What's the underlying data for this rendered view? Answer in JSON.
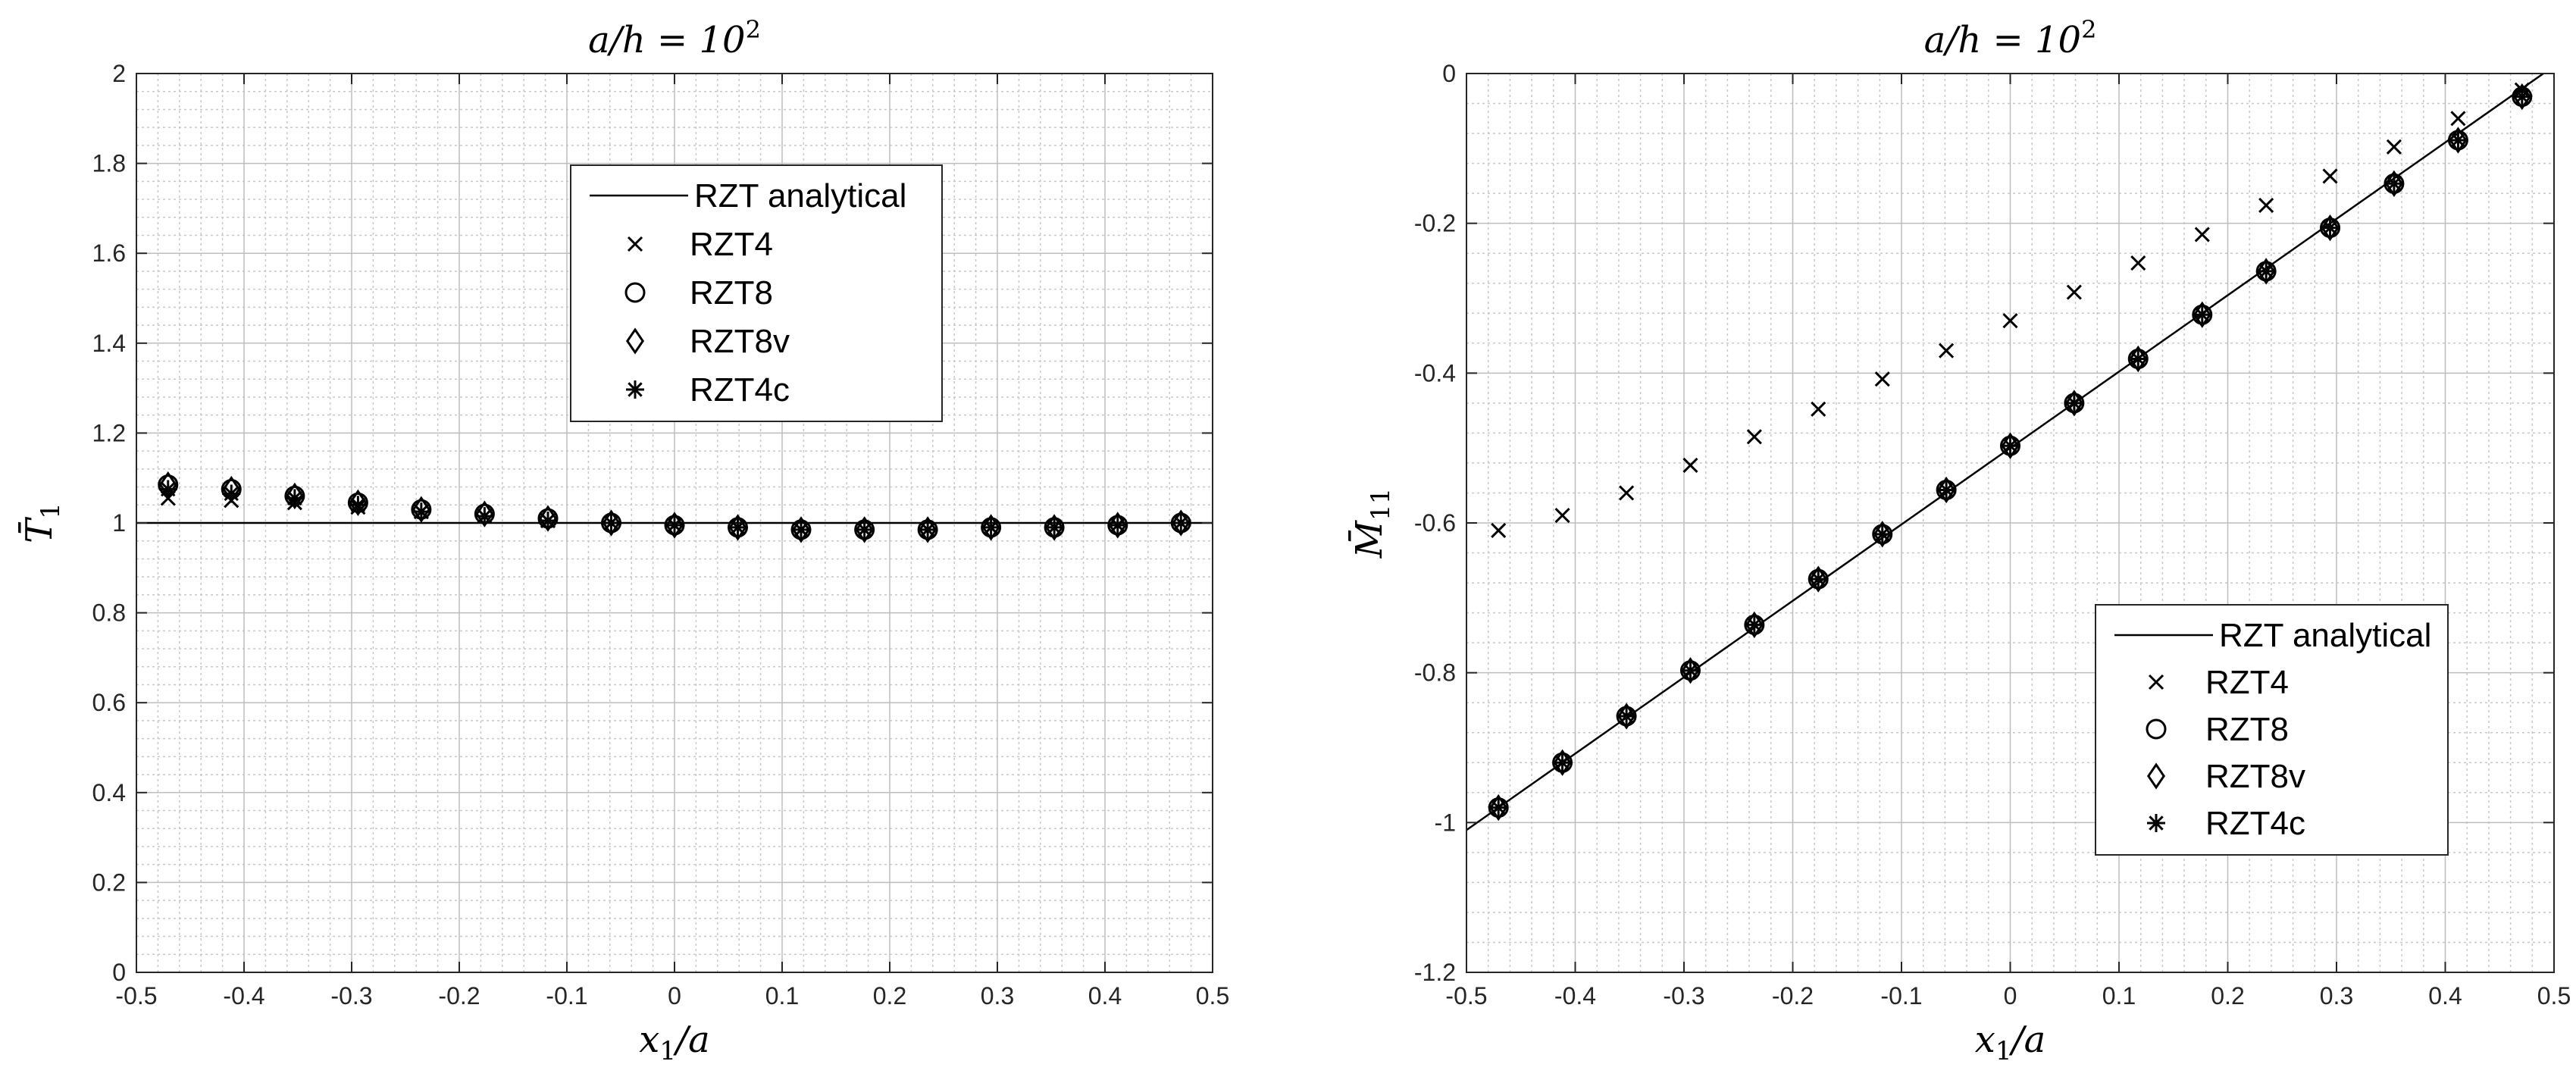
{
  "chart_data": [
    {
      "type": "line",
      "title": {
        "text": "a/h = 10",
        "exponent": "2"
      },
      "xlabel": "x₁/a",
      "ylabel": "T̄₁",
      "xlim": [
        -0.5,
        0.5
      ],
      "ylim": [
        0,
        2
      ],
      "xticks": [
        -0.5,
        -0.4,
        -0.3,
        -0.2,
        -0.1,
        0,
        0.1,
        0.2,
        0.3,
        0.4,
        0.5
      ],
      "yticks": [
        0,
        0.2,
        0.4,
        0.6,
        0.8,
        1,
        1.2,
        1.4,
        1.6,
        1.8,
        2
      ],
      "xtick_labels": [
        "-0.5",
        "-0.4",
        "-0.3",
        "-0.2",
        "-0.1",
        "0",
        "0.1",
        "0.2",
        "0.3",
        "0.4",
        "0.5"
      ],
      "ytick_labels": [
        "0",
        "0.2",
        "0.4",
        "0.6",
        "0.8",
        "1",
        "1.2",
        "1.4",
        "1.6",
        "1.8",
        "2"
      ],
      "grid": true,
      "minor_grid": true,
      "legend_position": "top-center",
      "x": [
        -0.4706,
        -0.4118,
        -0.3529,
        -0.2941,
        -0.2353,
        -0.1765,
        -0.1176,
        -0.0588,
        0,
        0.0588,
        0.1176,
        0.1765,
        0.2353,
        0.2941,
        0.3529,
        0.4118,
        0.4706
      ],
      "series": [
        {
          "name": "RZT analytical",
          "style": "line",
          "line_x": [
            -0.5,
            0.5
          ],
          "line_y": [
            1,
            1
          ]
        },
        {
          "name": "RZT4",
          "style": "x",
          "values": [
            1.055,
            1.05,
            1.045,
            1.035,
            1.025,
            1.015,
            1.005,
            1.0,
            0.995,
            0.99,
            0.985,
            0.985,
            0.985,
            0.99,
            0.99,
            0.995,
            1.0
          ]
        },
        {
          "name": "RZT8",
          "style": "circle",
          "values": [
            1.085,
            1.075,
            1.06,
            1.045,
            1.03,
            1.02,
            1.01,
            1.0,
            0.995,
            0.99,
            0.985,
            0.985,
            0.985,
            0.99,
            0.99,
            0.995,
            1.0
          ]
        },
        {
          "name": "RZT8v",
          "style": "diamond",
          "values": [
            1.085,
            1.075,
            1.06,
            1.045,
            1.03,
            1.02,
            1.01,
            1.0,
            0.995,
            0.99,
            0.985,
            0.985,
            0.985,
            0.99,
            0.99,
            0.995,
            1.0
          ]
        },
        {
          "name": "RZT4c",
          "style": "asterisk",
          "values": [
            1.075,
            1.065,
            1.055,
            1.04,
            1.025,
            1.015,
            1.005,
            1.0,
            0.995,
            0.99,
            0.985,
            0.985,
            0.985,
            0.99,
            0.99,
            0.995,
            1.0
          ]
        }
      ]
    },
    {
      "type": "line",
      "title": {
        "text": "a/h = 10",
        "exponent": "2"
      },
      "xlabel": "x₁/a",
      "ylabel": "M̄₁₁",
      "xlim": [
        -0.5,
        0.5
      ],
      "ylim": [
        -1.2,
        0
      ],
      "xticks": [
        -0.5,
        -0.4,
        -0.3,
        -0.2,
        -0.1,
        0,
        0.1,
        0.2,
        0.3,
        0.4,
        0.5
      ],
      "yticks": [
        -1.2,
        -1,
        -0.8,
        -0.6,
        -0.4,
        -0.2,
        0
      ],
      "xtick_labels": [
        "-0.5",
        "-0.4",
        "-0.3",
        "-0.2",
        "-0.1",
        "0",
        "0.1",
        "0.2",
        "0.3",
        "0.4",
        "0.5"
      ],
      "ytick_labels": [
        "-1.2",
        "-1",
        "-0.8",
        "-0.6",
        "-0.4",
        "-0.2",
        "0"
      ],
      "grid": true,
      "minor_grid": true,
      "legend_position": "bottom-right",
      "x": [
        -0.4706,
        -0.4118,
        -0.3529,
        -0.2941,
        -0.2353,
        -0.1765,
        -0.1176,
        -0.0588,
        0,
        0.0588,
        0.1176,
        0.1765,
        0.2353,
        0.2941,
        0.3529,
        0.4118,
        0.4706
      ],
      "series": [
        {
          "name": "RZT analytical",
          "style": "line",
          "line_x": [
            -0.5,
            0.5
          ],
          "line_y": [
            -1.01,
            0.01
          ]
        },
        {
          "name": "RZT4",
          "style": "x",
          "values": [
            -0.61,
            -0.59,
            -0.56,
            -0.523,
            -0.485,
            -0.448,
            -0.408,
            -0.37,
            -0.33,
            -0.292,
            -0.253,
            -0.215,
            -0.176,
            -0.137,
            -0.098,
            -0.06,
            -0.022
          ]
        },
        {
          "name": "RZT8",
          "style": "circle",
          "values": [
            -0.98,
            -0.92,
            -0.858,
            -0.797,
            -0.736,
            -0.675,
            -0.615,
            -0.556,
            -0.497,
            -0.44,
            -0.381,
            -0.322,
            -0.264,
            -0.206,
            -0.147,
            -0.089,
            -0.031
          ]
        },
        {
          "name": "RZT8v",
          "style": "diamond",
          "values": [
            -0.98,
            -0.92,
            -0.858,
            -0.797,
            -0.736,
            -0.675,
            -0.615,
            -0.556,
            -0.497,
            -0.44,
            -0.381,
            -0.322,
            -0.264,
            -0.206,
            -0.147,
            -0.089,
            -0.031
          ]
        },
        {
          "name": "RZT4c",
          "style": "asterisk",
          "values": [
            -0.98,
            -0.92,
            -0.858,
            -0.797,
            -0.736,
            -0.675,
            -0.615,
            -0.556,
            -0.497,
            -0.44,
            -0.381,
            -0.322,
            -0.264,
            -0.206,
            -0.147,
            -0.089,
            -0.031
          ]
        }
      ]
    }
  ]
}
